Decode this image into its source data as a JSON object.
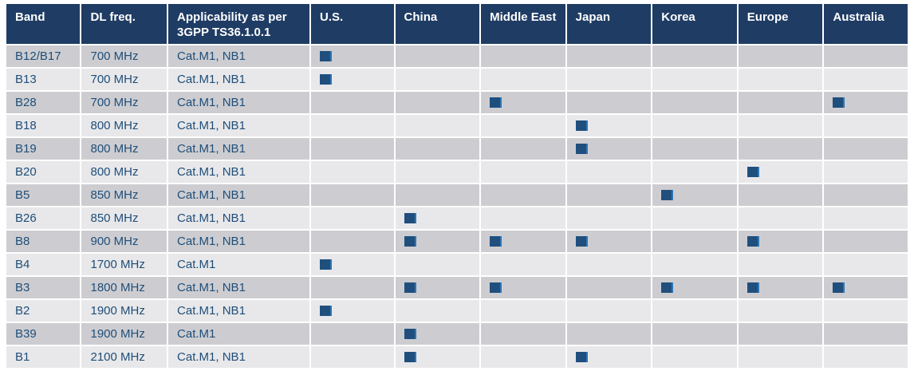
{
  "table": {
    "columns": [
      {
        "key": "band",
        "label": "Band"
      },
      {
        "key": "dl-freq",
        "label": "DL freq."
      },
      {
        "key": "applicability",
        "label": "Applicability as per 3GPP TS36.1.0.1"
      },
      {
        "key": "us",
        "label": "U.S."
      },
      {
        "key": "china",
        "label": "China"
      },
      {
        "key": "middle-east",
        "label": "Middle East"
      },
      {
        "key": "japan",
        "label": "Japan"
      },
      {
        "key": "korea",
        "label": "Korea"
      },
      {
        "key": "europe",
        "label": "Europe"
      },
      {
        "key": "australia",
        "label": "Australia"
      }
    ],
    "region_keys": [
      "us",
      "china",
      "middle-east",
      "japan",
      "korea",
      "europe",
      "australia"
    ],
    "rows": [
      {
        "band": "B12/B17",
        "dl_freq": "700 MHz",
        "applicability": "Cat.M1, NB1",
        "marks": [
          true,
          false,
          false,
          false,
          false,
          false,
          false
        ]
      },
      {
        "band": "B13",
        "dl_freq": "700 MHz",
        "applicability": "Cat.M1, NB1",
        "marks": [
          true,
          false,
          false,
          false,
          false,
          false,
          false
        ]
      },
      {
        "band": "B28",
        "dl_freq": "700 MHz",
        "applicability": "Cat.M1, NB1",
        "marks": [
          false,
          false,
          true,
          false,
          false,
          false,
          true
        ]
      },
      {
        "band": "B18",
        "dl_freq": "800 MHz",
        "applicability": "Cat.M1, NB1",
        "marks": [
          false,
          false,
          false,
          true,
          false,
          false,
          false
        ]
      },
      {
        "band": "B19",
        "dl_freq": "800 MHz",
        "applicability": "Cat.M1, NB1",
        "marks": [
          false,
          false,
          false,
          true,
          false,
          false,
          false
        ]
      },
      {
        "band": "B20",
        "dl_freq": "800 MHz",
        "applicability": "Cat.M1, NB1",
        "marks": [
          false,
          false,
          false,
          false,
          false,
          true,
          false
        ]
      },
      {
        "band": "B5",
        "dl_freq": "850 MHz",
        "applicability": "Cat.M1, NB1",
        "marks": [
          false,
          false,
          false,
          false,
          true,
          false,
          false
        ]
      },
      {
        "band": "B26",
        "dl_freq": "850 MHz",
        "applicability": "Cat.M1, NB1",
        "marks": [
          false,
          true,
          false,
          false,
          false,
          false,
          false
        ]
      },
      {
        "band": "B8",
        "dl_freq": "900 MHz",
        "applicability": "Cat.M1, NB1",
        "marks": [
          false,
          true,
          true,
          true,
          false,
          true,
          false
        ]
      },
      {
        "band": "B4",
        "dl_freq": "1700 MHz",
        "applicability": "Cat.M1",
        "marks": [
          true,
          false,
          false,
          false,
          false,
          false,
          false
        ]
      },
      {
        "band": "B3",
        "dl_freq": "1800 MHz",
        "applicability": "Cat.M1, NB1",
        "marks": [
          false,
          true,
          true,
          false,
          true,
          true,
          true
        ]
      },
      {
        "band": "B2",
        "dl_freq": "1900 MHz",
        "applicability": "Cat.M1, NB1",
        "marks": [
          true,
          false,
          false,
          false,
          false,
          false,
          false
        ]
      },
      {
        "band": "B39",
        "dl_freq": "1900 MHz",
        "applicability": "Cat.M1",
        "marks": [
          false,
          true,
          false,
          false,
          false,
          false,
          false
        ]
      },
      {
        "band": "B1",
        "dl_freq": "2100 MHz",
        "applicability": "Cat.M1, NB1",
        "marks": [
          false,
          true,
          false,
          true,
          false,
          false,
          false
        ]
      }
    ],
    "icons": {
      "mark": {
        "name": "filled-square-icon",
        "glyph": "■"
      }
    },
    "colors": {
      "header_bg": "#1f3c64",
      "header_text": "#ffffff",
      "row_dark_bg": "#cdcdd1",
      "row_light_bg": "#e8e8ea",
      "row_text": "#1f4e79",
      "mark_fill": "#204f7e",
      "mark_edge": "#2e75b6"
    }
  }
}
